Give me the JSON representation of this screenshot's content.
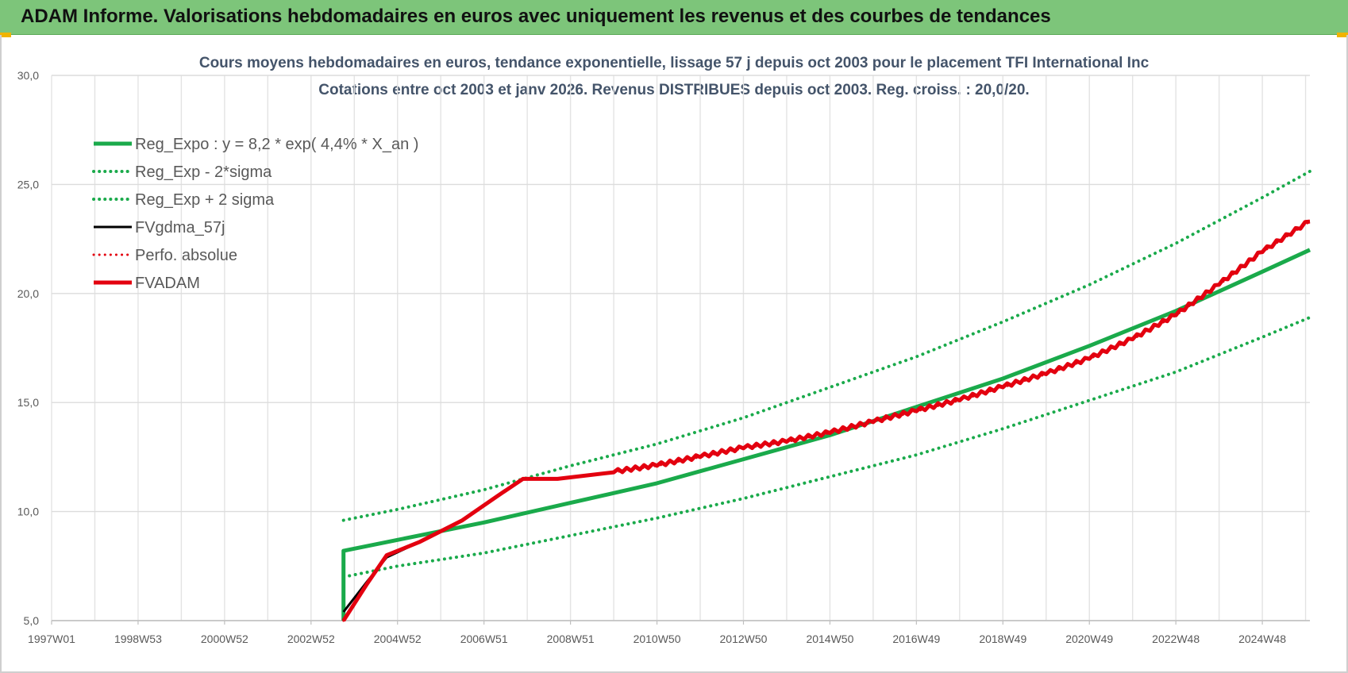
{
  "header": {
    "title": "ADAM Informe. Valorisations hebdomadaires en euros avec uniquement les revenus et des courbes de tendances"
  },
  "chart_data": {
    "type": "line",
    "title": "Cours moyens  hebdomadaires en euros, tendance exponentielle, lissage 57 j depuis oct 2003 pour le placement TFI International Inc",
    "subtitle": "Cotations entre oct 2003 et janv 2026. Revenus  DISTRIBUES depuis oct 2003.  Reg. croiss. : 20,0/20.",
    "xlabel": "",
    "ylabel": "",
    "x_unit": "year",
    "xlim": [
      1997.0,
      2026.1
    ],
    "ylim": [
      5,
      30
    ],
    "y_ticks": [
      "5,0",
      "10,0",
      "15,0",
      "20,0",
      "25,0",
      "30,0"
    ],
    "y_tick_values": [
      5,
      10,
      15,
      20,
      25,
      30
    ],
    "x_tick_labels": [
      "1997W01",
      "1998W53",
      "2000W52",
      "2002W52",
      "2004W52",
      "2006W51",
      "2008W51",
      "2010W50",
      "2012W50",
      "2014W50",
      "2016W49",
      "2018W49",
      "2020W49",
      "2022W48",
      "2024W48"
    ],
    "x_tick_values": [
      1997.0,
      1999.0,
      2001.0,
      2003.0,
      2005.0,
      2007.0,
      2009.0,
      2011.0,
      2013.0,
      2015.0,
      2017.0,
      2019.0,
      2021.0,
      2023.0,
      2025.0
    ],
    "grid": true,
    "legend_position": "top-left",
    "series": [
      {
        "name": "Reg_Expo : y = 8,2 * exp( 4,4% *  X_an )",
        "color": "#1aaa4b",
        "style": "solid",
        "width": 5,
        "points": [
          [
            2003.75,
            5.0
          ],
          [
            2003.75,
            8.2
          ],
          [
            2005,
            8.7
          ],
          [
            2007,
            9.5
          ],
          [
            2009,
            10.4
          ],
          [
            2011,
            11.3
          ],
          [
            2013,
            12.4
          ],
          [
            2015,
            13.5
          ],
          [
            2017,
            14.8
          ],
          [
            2019,
            16.1
          ],
          [
            2021,
            17.6
          ],
          [
            2023,
            19.2
          ],
          [
            2025,
            21.0
          ],
          [
            2026.1,
            22.0
          ]
        ]
      },
      {
        "name": "Reg_Exp - 2*sigma",
        "color": "#1aaa4b",
        "style": "dotted",
        "width": 4,
        "points": [
          [
            2003.75,
            7.0
          ],
          [
            2005,
            7.5
          ],
          [
            2007,
            8.1
          ],
          [
            2009,
            8.9
          ],
          [
            2011,
            9.7
          ],
          [
            2013,
            10.6
          ],
          [
            2015,
            11.6
          ],
          [
            2017,
            12.6
          ],
          [
            2019,
            13.8
          ],
          [
            2021,
            15.1
          ],
          [
            2023,
            16.4
          ],
          [
            2025,
            18.0
          ],
          [
            2026.1,
            18.9
          ]
        ]
      },
      {
        "name": "Reg_Exp + 2 sigma",
        "color": "#1aaa4b",
        "style": "dotted",
        "width": 4,
        "points": [
          [
            2003.75,
            9.6
          ],
          [
            2005,
            10.1
          ],
          [
            2007,
            11.0
          ],
          [
            2009,
            12.1
          ],
          [
            2011,
            13.1
          ],
          [
            2013,
            14.3
          ],
          [
            2015,
            15.7
          ],
          [
            2017,
            17.1
          ],
          [
            2019,
            18.7
          ],
          [
            2021,
            20.4
          ],
          [
            2023,
            22.3
          ],
          [
            2025,
            24.4
          ],
          [
            2026.1,
            25.6
          ]
        ]
      },
      {
        "name": "FVgdma_57j",
        "color": "#000000",
        "style": "solid",
        "width": 3,
        "points": [
          [
            2003.75,
            5.4
          ],
          [
            2004.3,
            6.8
          ],
          [
            2004.75,
            7.9
          ],
          [
            2005.5,
            8.6
          ],
          [
            2006.5,
            9.6
          ],
          [
            2007.3,
            10.7
          ],
          [
            2007.9,
            11.5
          ],
          [
            2008.7,
            11.5
          ],
          [
            2010,
            11.8
          ],
          [
            2011,
            12.1
          ],
          [
            2012,
            12.5
          ],
          [
            2013,
            12.9
          ],
          [
            2014,
            13.2
          ],
          [
            2015,
            13.6
          ],
          [
            2016,
            14.1
          ],
          [
            2017,
            14.6
          ],
          [
            2018,
            15.1
          ],
          [
            2019,
            15.7
          ],
          [
            2020,
            16.3
          ],
          [
            2021,
            17.0
          ],
          [
            2022,
            17.9
          ],
          [
            2023,
            19.0
          ],
          [
            2024,
            20.4
          ],
          [
            2025,
            21.9
          ],
          [
            2026.1,
            23.3
          ]
        ]
      },
      {
        "name": "Perfo. absolue",
        "color": "#e3000f",
        "style": "dotted",
        "width": 3,
        "points": [
          [
            2003.75,
            5.0
          ],
          [
            2004.3,
            6.7
          ],
          [
            2004.75,
            8.0
          ],
          [
            2005.5,
            8.6
          ],
          [
            2006.5,
            9.6
          ],
          [
            2007.3,
            10.7
          ],
          [
            2007.9,
            11.5
          ],
          [
            2008.7,
            11.5
          ],
          [
            2010,
            11.8
          ],
          [
            2011,
            12.1
          ],
          [
            2012,
            12.5
          ],
          [
            2013,
            12.9
          ],
          [
            2014,
            13.2
          ],
          [
            2015,
            13.6
          ],
          [
            2016,
            14.1
          ],
          [
            2017,
            14.6
          ],
          [
            2018,
            15.1
          ],
          [
            2019,
            15.7
          ],
          [
            2020,
            16.3
          ],
          [
            2021,
            17.0
          ],
          [
            2022,
            17.9
          ],
          [
            2023,
            19.0
          ],
          [
            2024,
            20.4
          ],
          [
            2025,
            21.9
          ],
          [
            2026.1,
            23.3
          ]
        ]
      },
      {
        "name": "FVADAM",
        "color": "#e3000f",
        "style": "solid",
        "width": 5,
        "points": [
          [
            2003.75,
            5.0
          ],
          [
            2004.3,
            6.7
          ],
          [
            2004.75,
            8.0
          ],
          [
            2005.5,
            8.6
          ],
          [
            2006.5,
            9.6
          ],
          [
            2007.3,
            10.7
          ],
          [
            2007.9,
            11.5
          ],
          [
            2008.7,
            11.5
          ],
          [
            2010,
            11.8
          ],
          [
            2011,
            12.1
          ],
          [
            2012,
            12.5
          ],
          [
            2013,
            12.9
          ],
          [
            2014,
            13.2
          ],
          [
            2015,
            13.6
          ],
          [
            2016,
            14.1
          ],
          [
            2017,
            14.6
          ],
          [
            2018,
            15.1
          ],
          [
            2019,
            15.7
          ],
          [
            2020,
            16.3
          ],
          [
            2021,
            17.0
          ],
          [
            2022,
            17.9
          ],
          [
            2023,
            19.0
          ],
          [
            2024,
            20.4
          ],
          [
            2025,
            21.9
          ],
          [
            2026.1,
            23.3
          ]
        ]
      }
    ]
  }
}
